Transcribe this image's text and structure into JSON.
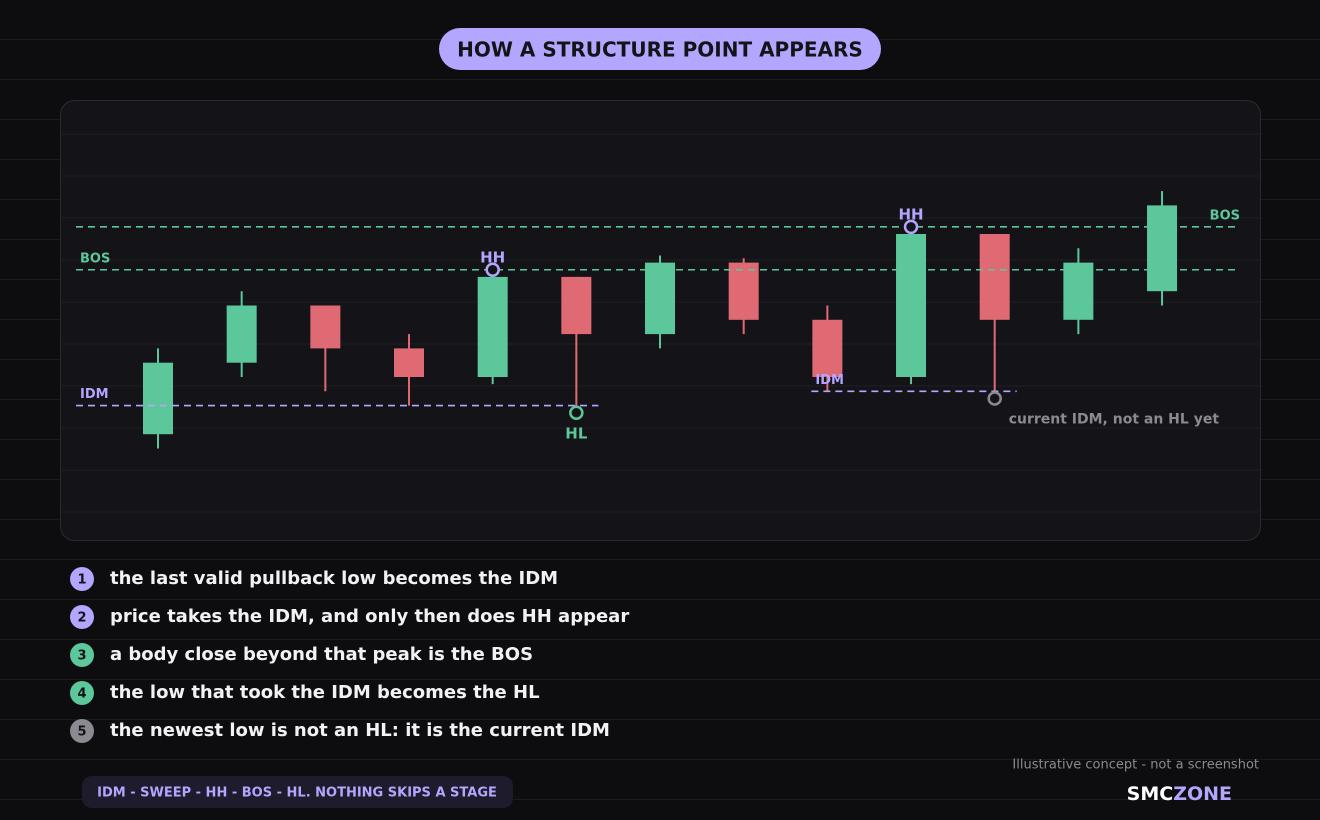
{
  "chart_data": {
    "type": "candlestick",
    "title": "HOW A STRUCTURE POINT APPEARS",
    "ylim": [
      0,
      30
    ],
    "up_color": "#5cc79b",
    "down_color": "#e06a74",
    "candles": [
      {
        "open": 6,
        "high": 12,
        "low": 5,
        "close": 11
      },
      {
        "open": 11,
        "high": 16,
        "low": 10,
        "close": 15
      },
      {
        "open": 15,
        "high": 15,
        "low": 9,
        "close": 12
      },
      {
        "open": 12,
        "high": 13,
        "low": 8,
        "close": 10
      },
      {
        "open": 10,
        "high": 17,
        "low": 9.5,
        "close": 17
      },
      {
        "open": 17,
        "high": 17,
        "low": 7.5,
        "close": 13
      },
      {
        "open": 13,
        "high": 18.5,
        "low": 12,
        "close": 18
      },
      {
        "open": 18,
        "high": 18.3,
        "low": 13,
        "close": 14
      },
      {
        "open": 14,
        "high": 15,
        "low": 9,
        "close": 10
      },
      {
        "open": 10,
        "high": 20,
        "low": 9.5,
        "close": 20
      },
      {
        "open": 20,
        "high": 20,
        "low": 8.5,
        "close": 14
      },
      {
        "open": 14,
        "high": 19,
        "low": 13,
        "close": 18
      },
      {
        "open": 16,
        "high": 23,
        "low": 15,
        "close": 22
      }
    ],
    "levels": [
      {
        "label": "BOS",
        "value": 20.5,
        "from": 0,
        "to": 12,
        "color": "#5cc79b",
        "label_position": "end"
      },
      {
        "label": "BOS",
        "value": 17.5,
        "from": 0,
        "to": 12,
        "color": "#5cc79b",
        "label_position": "start"
      },
      {
        "label": "IDM",
        "value": 8,
        "from": 0,
        "to": 5,
        "color": "#b3a6ff",
        "label_position": "start"
      },
      {
        "label": "IDM",
        "value": 9,
        "from": 8,
        "to": 10,
        "color": "#b3a6ff",
        "label_position": "start"
      }
    ],
    "markers": [
      {
        "candle": 4,
        "value": 17.5,
        "label": "HH",
        "color": "#b3a6ff",
        "label_position": "above"
      },
      {
        "candle": 5,
        "value": 7.5,
        "label": "HL",
        "color": "#5cc79b",
        "label_position": "below"
      },
      {
        "candle": 9,
        "value": 20.5,
        "label": "HH",
        "color": "#b3a6ff",
        "label_position": "above"
      },
      {
        "candle": 10,
        "value": 8.5,
        "note": "current IDM, not an HL yet",
        "color": "#8a8a90"
      }
    ]
  },
  "steps": [
    {
      "number": "1",
      "text": "the last valid pullback low becomes the IDM",
      "color": "#b3a6ff"
    },
    {
      "number": "2",
      "text": "price takes the IDM, and only then does HH appear",
      "color": "#b3a6ff"
    },
    {
      "number": "3",
      "text": "a body close beyond that peak is the BOS",
      "color": "#5cc79b"
    },
    {
      "number": "4",
      "text": "the low that took the IDM becomes the HL",
      "color": "#5cc79b"
    },
    {
      "number": "5",
      "text": "the newest low is not an HL: it is the current IDM",
      "color": "#8a8a90"
    }
  ],
  "footer": {
    "sequence": "IDM - SWEEP - HH - BOS - HL. NOTHING SKIPS A STAGE",
    "disclaimer": "Illustrative concept - not a screenshot",
    "brand_a": "SMC",
    "brand_b": "ZONE"
  }
}
